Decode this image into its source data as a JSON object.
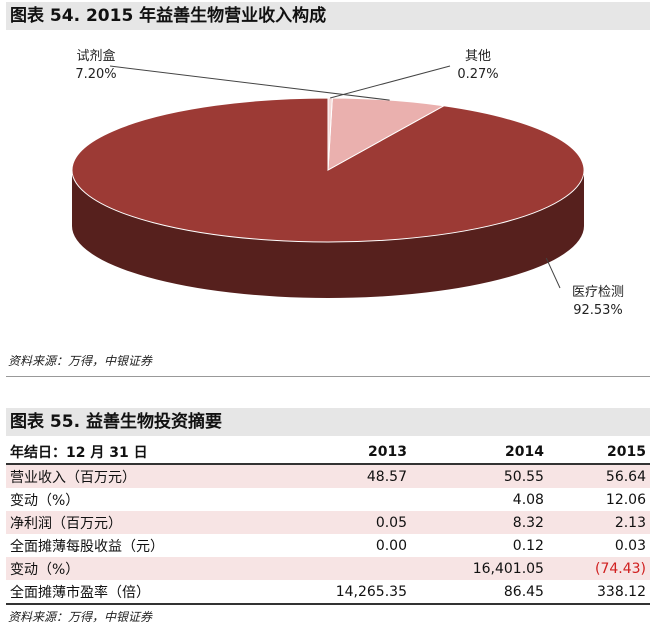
{
  "figure1": {
    "title": "图表 54. 2015 年益善生物营业收入构成",
    "source": "资料来源：万得，中银证券"
  },
  "chart_data": {
    "type": "pie",
    "title": "2015 年益善生物营业收入构成",
    "slices": [
      {
        "label": "医疗检测",
        "value": 92.53,
        "display": "92.53%",
        "color": "#9c3a35"
      },
      {
        "label": "试剂盒",
        "value": 7.2,
        "display": "7.20%",
        "color": "#eab0ae"
      },
      {
        "label": "其他",
        "value": 0.27,
        "display": "0.27%",
        "color": "#f4dad8"
      }
    ]
  },
  "figure2": {
    "title": "图表 55. 益善生物投资摘要",
    "source": "资料来源：万得，中银证券",
    "header": [
      "年结日：12 月 31 日",
      "2013",
      "2014",
      "2015"
    ],
    "rows": [
      {
        "label": "营业收入（百万元）",
        "v2013": "48.57",
        "v2014": "50.55",
        "v2015": "56.64",
        "shaded": true
      },
      {
        "label": "变动（%）",
        "v2013": "",
        "v2014": "4.08",
        "v2015": "12.06",
        "shaded": false
      },
      {
        "label": "净利润（百万元）",
        "v2013": "0.05",
        "v2014": "8.32",
        "v2015": "2.13",
        "shaded": true
      },
      {
        "label": "全面摊薄每股收益（元）",
        "v2013": "0.00",
        "v2014": "0.12",
        "v2015": "0.03",
        "shaded": false
      },
      {
        "label": "变动（%）",
        "v2013": "",
        "v2014": "16,401.05",
        "v2015": "(74.43)",
        "shaded": true,
        "neg2015": true
      },
      {
        "label": "全面摊薄市盈率（倍）",
        "v2013": "14,265.35",
        "v2014": "86.45",
        "v2015": "338.12",
        "shaded": false
      }
    ]
  }
}
